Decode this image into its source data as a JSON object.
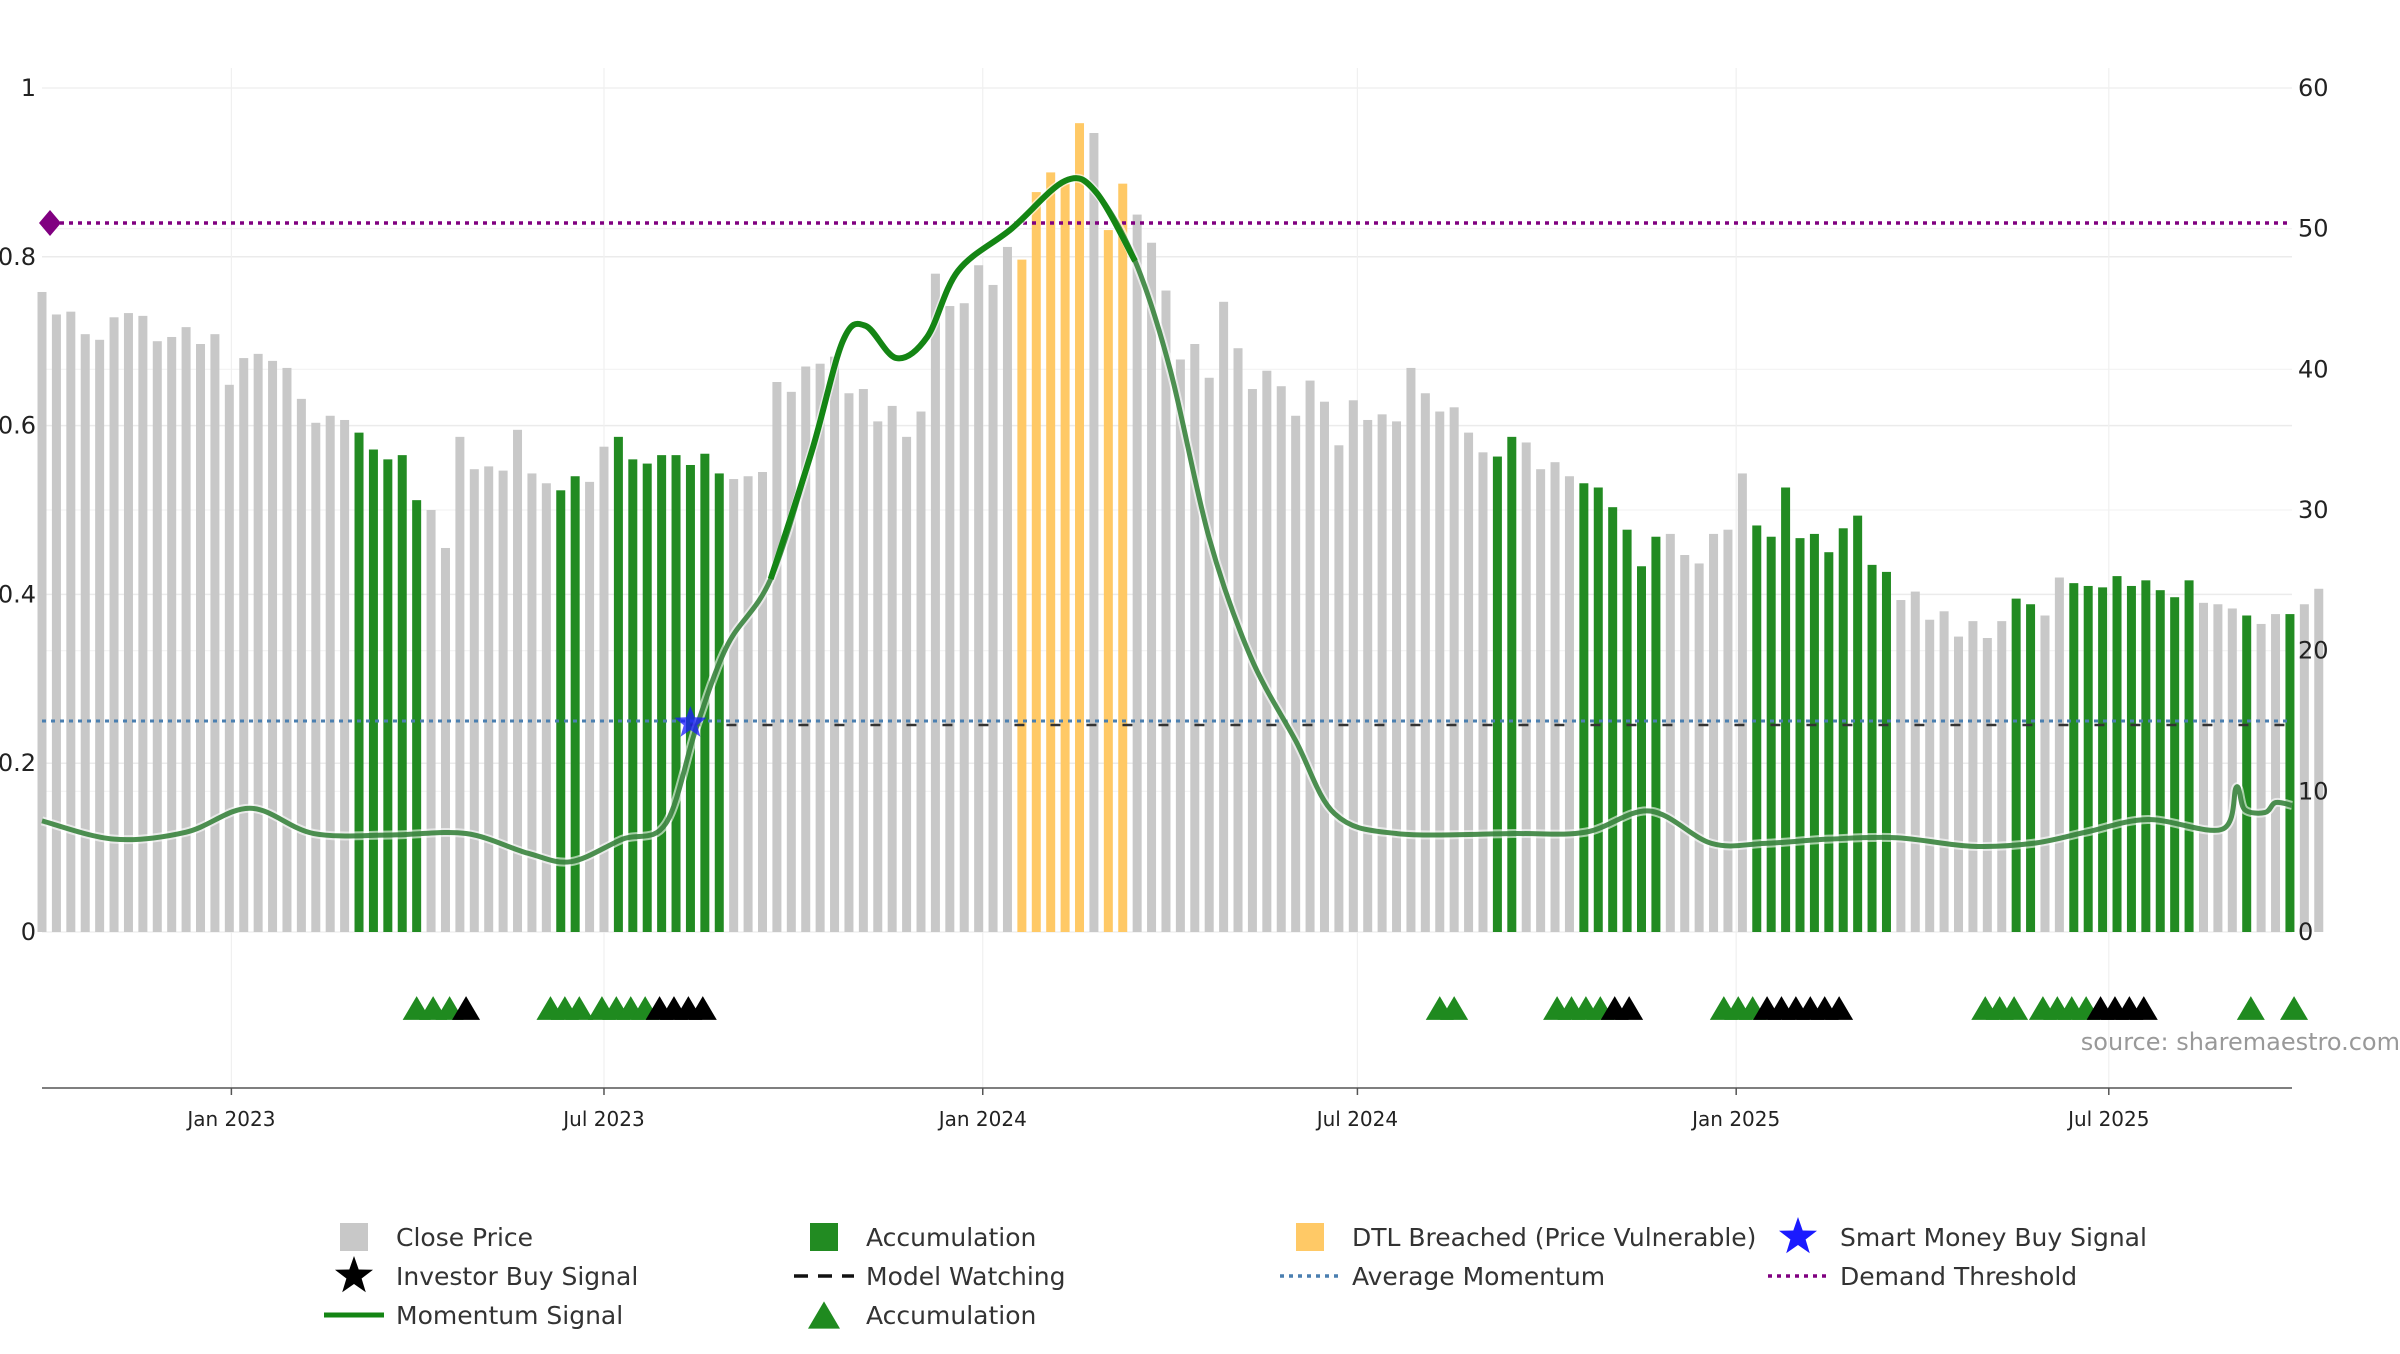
{
  "chart_data": {
    "type": "bar",
    "source_text": "source: sharemaestro.com",
    "left_axis": {
      "ylim": [
        0,
        1
      ],
      "ticks": [
        "0",
        "0.2",
        "0.4",
        "0.6",
        "0.8",
        "1"
      ],
      "tick_values": [
        0,
        0.2,
        0.4,
        0.6,
        0.8,
        1
      ]
    },
    "right_axis": {
      "ylim": [
        0,
        60
      ],
      "ticks": [
        "0",
        "10",
        "20",
        "30",
        "40",
        "50",
        "60"
      ],
      "tick_values": [
        0,
        10,
        20,
        30,
        40,
        50,
        60
      ]
    },
    "x_axis": {
      "start": "2022-10-01",
      "end": "2025-09-28",
      "ticks": [
        {
          "date": "2023-01-01",
          "label": "Jan 2023"
        },
        {
          "date": "2023-07-01",
          "label": "Jul 2023"
        },
        {
          "date": "2024-01-01",
          "label": "Jan 2024"
        },
        {
          "date": "2024-07-01",
          "label": "Jul 2024"
        },
        {
          "date": "2025-01-01",
          "label": "Jan 2025"
        },
        {
          "date": "2025-07-01",
          "label": "Jul 2025"
        }
      ]
    },
    "grid": true,
    "close_price": {
      "name": "Close Price",
      "start_date": "2022-10-01",
      "interval_days": 7,
      "values": [
        45.5,
        43.9,
        44.1,
        42.5,
        42.1,
        43.7,
        44.0,
        43.8,
        42.0,
        42.3,
        43.0,
        41.8,
        42.5,
        38.9,
        40.8,
        41.1,
        40.6,
        40.1,
        37.9,
        36.2,
        36.7,
        36.4,
        35.5,
        34.3,
        33.6,
        33.9,
        30.7,
        30.0,
        27.3,
        35.2,
        32.9,
        33.1,
        32.8,
        35.7,
        32.6,
        31.9,
        31.4,
        32.4,
        32.0,
        34.5,
        35.2,
        33.6,
        33.3,
        33.9,
        33.9,
        33.2,
        34.0,
        32.6,
        32.2,
        32.4,
        32.7,
        39.1,
        38.4,
        40.2,
        40.4,
        40.9,
        38.3,
        38.6,
        36.3,
        37.4,
        35.2,
        37.0,
        46.8,
        44.5,
        44.7,
        47.4,
        46.0,
        48.7,
        47.8,
        52.6,
        54.0,
        53.2,
        57.5,
        56.8,
        49.9,
        53.2,
        51.0,
        49.0,
        45.6,
        40.7,
        41.8,
        39.4,
        44.8,
        41.5,
        38.6,
        39.9,
        38.8,
        36.7,
        39.2,
        37.7,
        34.6,
        37.8,
        36.4,
        36.8,
        36.3,
        40.1,
        38.3,
        37.0,
        37.3,
        35.5,
        34.1,
        33.8,
        35.2,
        34.8,
        32.9,
        33.4,
        32.4,
        31.9,
        31.6,
        30.2,
        28.6,
        26.0,
        28.1,
        28.3,
        26.8,
        26.2,
        28.3,
        28.6,
        32.6,
        28.9,
        28.1,
        31.6,
        28.0,
        28.3,
        27.0,
        28.7,
        29.6,
        26.1,
        25.6,
        23.6,
        24.2,
        22.2,
        22.8,
        21.0,
        22.1,
        20.9,
        22.1,
        23.7,
        23.3,
        22.5,
        25.2,
        24.8,
        24.6,
        24.5,
        25.3,
        24.6,
        25.0,
        24.3,
        23.8,
        25.0,
        23.4,
        23.3,
        23.0,
        22.5,
        21.9,
        22.6,
        22.6,
        23.3,
        24.4
      ]
    },
    "accumulation_ranges": [
      [
        22,
        26
      ],
      [
        36,
        37
      ],
      [
        40,
        47
      ],
      [
        101,
        102
      ],
      [
        107,
        112
      ],
      [
        119,
        128
      ],
      [
        137,
        138
      ],
      [
        141,
        149
      ],
      [
        153,
        153
      ],
      [
        156,
        156
      ]
    ],
    "dtl_ranges": [
      [
        68,
        72
      ],
      [
        74,
        75
      ]
    ],
    "momentum": {
      "name": "Momentum Signal",
      "points": [
        [
          "2022-10-01",
          7.9
        ],
        [
          "2022-11-05",
          6.6
        ],
        [
          "2022-12-10",
          7.1
        ],
        [
          "2023-01-10",
          8.8
        ],
        [
          "2023-02-10",
          7.0
        ],
        [
          "2023-03-20",
          6.9
        ],
        [
          "2023-04-25",
          7.0
        ],
        [
          "2023-05-25",
          5.6
        ],
        [
          "2023-06-15",
          5.0
        ],
        [
          "2023-07-10",
          6.6
        ],
        [
          "2023-07-31",
          7.7
        ],
        [
          "2023-08-15",
          14.6
        ],
        [
          "2023-08-30",
          20.4
        ],
        [
          "2023-09-20",
          25.1
        ],
        [
          "2023-10-10",
          34.2
        ],
        [
          "2023-10-25",
          42.0
        ],
        [
          "2023-11-05",
          43.1
        ],
        [
          "2023-11-20",
          40.8
        ],
        [
          "2023-12-05",
          42.3
        ],
        [
          "2023-12-20",
          47.0
        ],
        [
          "2024-01-15",
          50.0
        ],
        [
          "2024-02-10",
          53.4
        ],
        [
          "2024-02-25",
          52.6
        ],
        [
          "2024-03-15",
          47.7
        ],
        [
          "2024-04-01",
          40.0
        ],
        [
          "2024-04-20",
          28.0
        ],
        [
          "2024-05-10",
          19.6
        ],
        [
          "2024-06-01",
          13.6
        ],
        [
          "2024-06-20",
          8.4
        ],
        [
          "2024-07-20",
          7.0
        ],
        [
          "2024-09-15",
          7.0
        ],
        [
          "2024-10-20",
          7.1
        ],
        [
          "2024-11-20",
          8.6
        ],
        [
          "2024-12-20",
          6.3
        ],
        [
          "2025-01-15",
          6.3
        ],
        [
          "2025-02-15",
          6.6
        ],
        [
          "2025-03-20",
          6.7
        ],
        [
          "2025-04-25",
          6.1
        ],
        [
          "2025-05-25",
          6.3
        ],
        [
          "2025-06-20",
          7.1
        ],
        [
          "2025-07-20",
          8.0
        ],
        [
          "2025-08-25",
          7.3
        ],
        [
          "2025-09-01",
          10.3
        ],
        [
          "2025-09-05",
          8.7
        ],
        [
          "2025-09-15",
          8.5
        ],
        [
          "2025-09-20",
          9.2
        ],
        [
          "2025-09-28",
          9.0
        ]
      ]
    },
    "average_momentum": 0.25,
    "demand_threshold": 0.84,
    "smart_money_buy_date": "2023-08-12",
    "model_watching_range": [
      "2023-08-12",
      "2025-09-28"
    ],
    "accumulation_triangles": [
      "2023-04-01",
      "2023-04-09",
      "2023-04-17",
      "2023-06-05",
      "2023-06-12",
      "2023-06-19",
      "2023-06-30",
      "2023-07-07",
      "2023-07-14",
      "2023-07-21",
      "2024-08-10",
      "2024-08-17",
      "2024-10-06",
      "2024-10-13",
      "2024-10-20",
      "2024-10-27",
      "2024-12-26",
      "2025-01-02",
      "2025-01-09",
      "2025-05-02",
      "2025-05-09",
      "2025-05-16",
      "2025-05-30",
      "2025-06-06",
      "2025-06-13",
      "2025-06-20",
      "2025-09-08",
      "2025-09-29"
    ],
    "investor_buy_signals": [
      "2023-04-25",
      "2023-07-28",
      "2023-08-04",
      "2023-08-11",
      "2023-08-18",
      "2024-11-03",
      "2024-11-10",
      "2025-01-16",
      "2025-01-23",
      "2025-01-30",
      "2025-02-06",
      "2025-02-13",
      "2025-02-20",
      "2025-06-27",
      "2025-07-04",
      "2025-07-11",
      "2025-07-18"
    ],
    "legend": [
      {
        "key": "close",
        "label": "Close Price"
      },
      {
        "key": "accum",
        "label": "Accumulation"
      },
      {
        "key": "dtl",
        "label": "DTL Breached (Price Vulnerable)"
      },
      {
        "key": "smart",
        "label": "Smart Money Buy Signal"
      },
      {
        "key": "investor",
        "label": "Investor Buy Signal"
      },
      {
        "key": "watch",
        "label": "Model Watching"
      },
      {
        "key": "avg",
        "label": "Average Momentum"
      },
      {
        "key": "demand",
        "label": "Demand Threshold"
      },
      {
        "key": "momentum",
        "label": "Momentum Signal"
      },
      {
        "key": "accum_tri",
        "label": "Accumulation"
      }
    ],
    "colors": {
      "close": "#c8c8c8",
      "accum": "#228b22",
      "dtl": "#ffc966",
      "momentum": "#2e7d32",
      "momentum_strong": "#148514",
      "avg": "#4a7fb0",
      "demand": "#800080",
      "smart": "#1a1aff",
      "investor": "#000000",
      "grid": "#ebebeb",
      "axis_text": "#222222",
      "source_text": "#999999"
    }
  }
}
